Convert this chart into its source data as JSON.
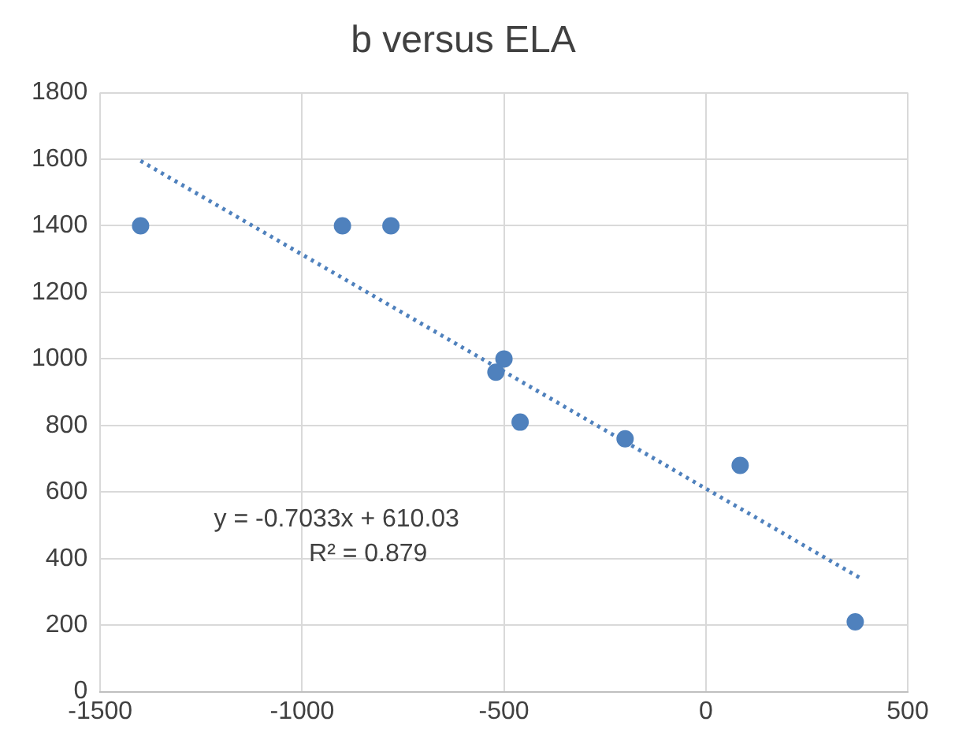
{
  "chart_data": {
    "type": "scatter",
    "title": "b versus ELA",
    "series": [
      {
        "color": "#4f81bd",
        "x": [
          -1400,
          -900,
          -780,
          -500,
          -520,
          -460,
          -200,
          85,
          370
        ],
        "values": [
          1400,
          1400,
          1400,
          1000,
          960,
          810,
          760,
          680,
          210
        ],
        "marker": "circle"
      },
      {
        "type": "line",
        "color": "#4f81bd",
        "x": [
          -1400,
          380
        ],
        "values": [
          1595,
          343
        ],
        "line_style": "dotted",
        "marker": "none"
      }
    ],
    "xlim": [
      -1500,
      500
    ],
    "xticks": [
      -1500,
      -1000,
      -500,
      0,
      500
    ],
    "ylim": [
      0,
      1800
    ],
    "yticks": [
      0,
      200,
      400,
      600,
      800,
      1000,
      1200,
      1400,
      1600,
      1800
    ],
    "grid": true,
    "legend": false,
    "annotations": [
      "y = -0.7033x + 610.03",
      "R² = 0.879"
    ]
  }
}
